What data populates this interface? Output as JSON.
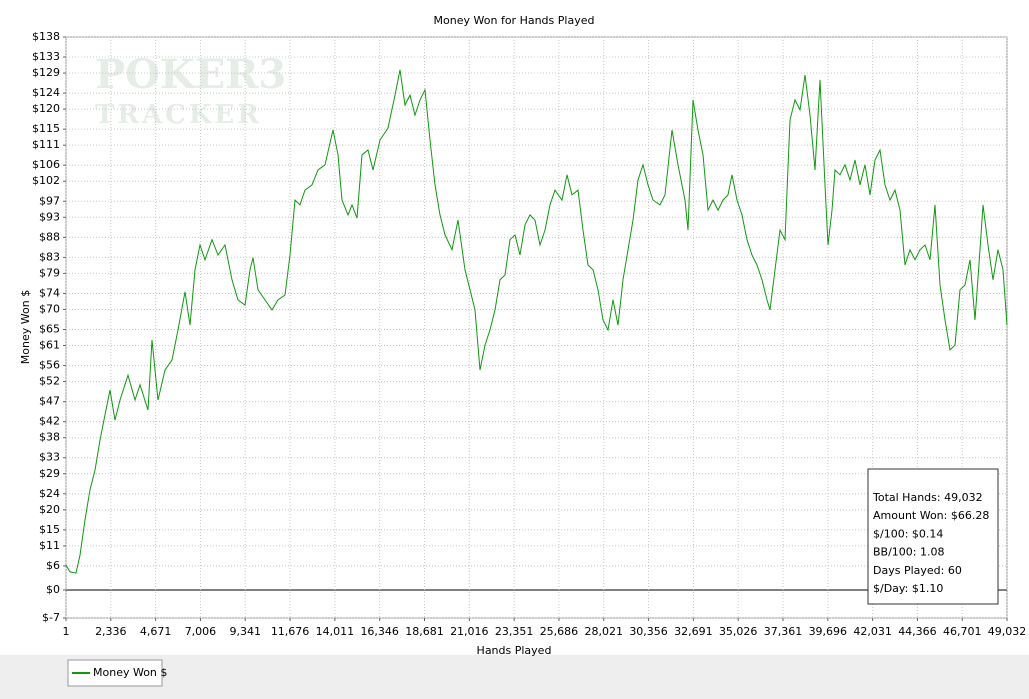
{
  "chart_data": {
    "type": "line",
    "title": "Money Won for Hands Played",
    "xlabel": "Hands Played",
    "ylabel": "Money Won $",
    "watermark": [
      "POKER3",
      "TRACKER"
    ],
    "grid": true,
    "legend": "bottom-left",
    "xlim": [
      1,
      49032
    ],
    "ylim": [
      -7,
      138
    ],
    "xticks": [
      1,
      {
        "value": 2336,
        "label": "2,336"
      },
      {
        "value": 4671,
        "label": "4,671"
      },
      {
        "value": 7006,
        "label": "7,006"
      },
      {
        "value": 9341,
        "label": "9,341"
      },
      {
        "value": 11676,
        "label": "11,676"
      },
      {
        "value": 14011,
        "label": "14,011"
      },
      {
        "value": 16346,
        "label": "16,346"
      },
      {
        "value": 18681,
        "label": "18,681"
      },
      {
        "value": 21016,
        "label": "21,016"
      },
      {
        "value": 23351,
        "label": "23,351"
      },
      {
        "value": 25686,
        "label": "25,686"
      },
      {
        "value": 28021,
        "label": "28,021"
      },
      {
        "value": 30356,
        "label": "30,356"
      },
      {
        "value": 32691,
        "label": "32,691"
      },
      {
        "value": 35026,
        "label": "35,026"
      },
      {
        "value": 37361,
        "label": "37,361"
      },
      {
        "value": 39696,
        "label": "39,696"
      },
      {
        "value": 42031,
        "label": "42,031"
      },
      {
        "value": 44366,
        "label": "44,366"
      },
      {
        "value": 46701,
        "label": "46,701"
      },
      {
        "value": 49032,
        "label": "49,032"
      }
    ],
    "yticks": [
      {
        "value": 138,
        "label": "$138"
      },
      {
        "value": 133,
        "label": "$133"
      },
      {
        "value": 129,
        "label": "$129"
      },
      {
        "value": 124,
        "label": "$124"
      },
      {
        "value": 120,
        "label": "$120"
      },
      {
        "value": 115,
        "label": "$115"
      },
      {
        "value": 111,
        "label": "$111"
      },
      {
        "value": 106,
        "label": "$106"
      },
      {
        "value": 102,
        "label": "$102"
      },
      {
        "value": 97,
        "label": "$97"
      },
      {
        "value": 93,
        "label": "$93"
      },
      {
        "value": 88,
        "label": "$88"
      },
      {
        "value": 83,
        "label": "$83"
      },
      {
        "value": 79,
        "label": "$79"
      },
      {
        "value": 74,
        "label": "$74"
      },
      {
        "value": 70,
        "label": "$70"
      },
      {
        "value": 65,
        "label": "$65"
      },
      {
        "value": 61,
        "label": "$61"
      },
      {
        "value": 56,
        "label": "$56"
      },
      {
        "value": 52,
        "label": "$52"
      },
      {
        "value": 47,
        "label": "$47"
      },
      {
        "value": 42,
        "label": "$42"
      },
      {
        "value": 38,
        "label": "$38"
      },
      {
        "value": 33,
        "label": "$33"
      },
      {
        "value": 29,
        "label": "$29"
      },
      {
        "value": 24,
        "label": "$24"
      },
      {
        "value": 20,
        "label": "$20"
      },
      {
        "value": 15,
        "label": "$15"
      },
      {
        "value": 11,
        "label": "$11"
      },
      {
        "value": 6,
        "label": "$6"
      },
      {
        "value": 0,
        "label": "$0"
      },
      {
        "value": -7,
        "label": "$-7"
      }
    ],
    "x": [
      1,
      208,
      521,
      729,
      990,
      1250,
      1511,
      1772,
      1928,
      2293,
      2553,
      2814,
      3231,
      3596,
      3856,
      4273,
      4481,
      4794,
      5159,
      5524,
      5836,
      6201,
      6461,
      6722,
      6982,
      7243,
      7608,
      7920,
      8285,
      8649,
      8962,
      9327,
      9587,
      9744,
      10004,
      10369,
      10734,
      11046,
      11411,
      11671,
      11932,
      12193,
      12453,
      12818,
      13130,
      13495,
      13912,
      14173,
      14381,
      14694,
      14902,
      15163,
      15423,
      15736,
      15996,
      16361,
      16778,
      17142,
      17403,
      17663,
      17924,
      18184,
      18445,
      18705,
      18966,
      19227,
      19487,
      19748,
      20113,
      20425,
      20790,
      21050,
      21311,
      21571,
      21832,
      22093,
      22353,
      22614,
      22874,
      23135,
      23395,
      23656,
      23916,
      24177,
      24437,
      24698,
      24958,
      25219,
      25479,
      25844,
      26105,
      26365,
      26678,
      26938,
      27199,
      27459,
      27720,
      27980,
      28241,
      28501,
      28762,
      29022,
      29283,
      29543,
      29804,
      30065,
      30325,
      30586,
      30951,
      31211,
      31576,
      31888,
      32253,
      32409,
      32670,
      32930,
      33191,
      33451,
      33712,
      33972,
      34233,
      34493,
      34702,
      34962,
      35223,
      35483,
      35744,
      36004,
      36265,
      36525,
      36681,
      36942,
      37203,
      37463,
      37724,
      37984,
      38245,
      38505,
      38766,
      39026,
      39287,
      39547,
      39704,
      39912,
      40068,
      40329,
      40589,
      40850,
      41110,
      41371,
      41631,
      41892,
      42153,
      42413,
      42674,
      42934,
      43195,
      43455,
      43716,
      43976,
      44237,
      44497,
      44758,
      45018,
      45279,
      45539,
      45800,
      46060,
      46321,
      46581,
      46842,
      47102,
      47363,
      47623,
      47780,
      48040,
      48301,
      48561,
      48822,
      49032
    ],
    "series": [
      {
        "name": "Money Won $",
        "color": "#109810",
        "values": [
          6.2,
          4.5,
          4.2,
          8.7,
          17.5,
          25,
          29.9,
          37.4,
          41.2,
          49.9,
          42.4,
          47.4,
          53.6,
          47.4,
          51.2,
          44.9,
          62.4,
          47.4,
          54.9,
          57.4,
          64.9,
          74.4,
          66.1,
          79.9,
          86.1,
          82.4,
          87.4,
          83.6,
          86.1,
          77.4,
          72.4,
          71.1,
          79.9,
          82.9,
          74.9,
          72.4,
          69.9,
          72.4,
          73.6,
          83.6,
          97.3,
          96.1,
          99.8,
          101.1,
          104.8,
          106.1,
          114.8,
          108.6,
          97.3,
          93.6,
          96.1,
          92.8,
          108.6,
          109.8,
          104.8,
          112.3,
          115.3,
          123.5,
          129.8,
          121.0,
          123.5,
          118.5,
          122.3,
          124.8,
          112.3,
          101.1,
          93.6,
          88.6,
          84.9,
          92.3,
          79.9,
          74.9,
          69.9,
          54.9,
          61.1,
          64.9,
          69.9,
          77.4,
          78.6,
          87.4,
          88.6,
          83.6,
          91.1,
          93.6,
          92.3,
          86.1,
          89.8,
          96.1,
          99.8,
          97.3,
          103.6,
          98.6,
          99.8,
          89.8,
          81.1,
          79.9,
          74.9,
          67.4,
          64.9,
          72.4,
          66.1,
          77.4,
          84.9,
          92.3,
          102.3,
          106.1,
          101.1,
          97.3,
          96.1,
          98.6,
          114.8,
          106.1,
          97.3,
          89.8,
          122.3,
          114.8,
          108.6,
          94.8,
          97.3,
          94.8,
          97.3,
          98.6,
          103.6,
          97.3,
          93.6,
          87.4,
          83.6,
          81.1,
          77.4,
          72.4,
          69.9,
          79.9,
          89.8,
          87.4,
          117.3,
          122.3,
          119.8,
          128.5,
          118.5,
          104.8,
          127.3,
          101.1,
          86.1,
          94.8,
          104.8,
          103.6,
          106.1,
          102.3,
          107.3,
          101.1,
          106.1,
          98.6,
          107.3,
          109.8,
          101.1,
          97.3,
          99.8,
          94.8,
          81.1,
          84.9,
          82.4,
          84.9,
          86.1,
          82.4,
          96.1,
          76.1,
          67.4,
          59.9,
          61.1,
          74.9,
          76.1,
          82.4,
          67.4,
          84.9,
          96.1,
          86.1,
          77.4,
          84.9,
          79.9,
          66.1
        ]
      }
    ],
    "annotations": [
      "Total Hands: 49,032",
      "Amount Won: $66.28",
      "$/100: $0.14",
      "BB/100: 1.08",
      "Days Played: 60",
      "$/Day: $1.10"
    ]
  }
}
